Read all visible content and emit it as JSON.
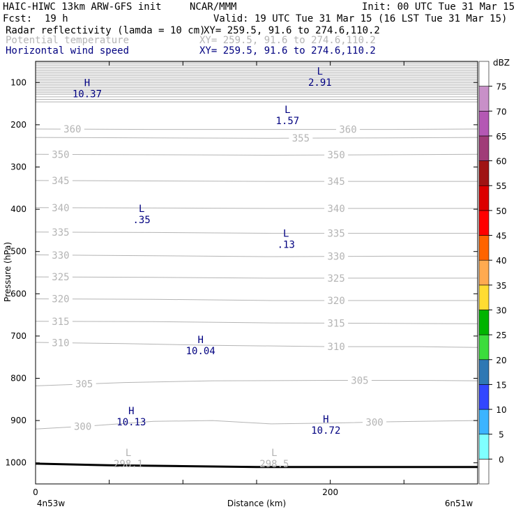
{
  "header": {
    "title_left": "HAIC-HIWC 13km ARW-GFS init",
    "title_org": "NCAR/MMM",
    "init": "Init: 00 UTC Tue 31 Mar 15",
    "fcst_label": "Fcst:",
    "fcst_value": "19 h",
    "valid": "Valid: 19 UTC Tue 31 Mar 15 (16 LST Tue 31 Mar 15)",
    "fields": [
      {
        "name": "Radar reflectivity (lamda = 10 cm)",
        "xy": "XY= 259.5, 91.6 to 274.6,110.2",
        "color": "#000000"
      },
      {
        "name": "Potential temperature",
        "xy": "XY= 259.5, 91.6 to 274.6,110.2",
        "color": "#b4b4b4"
      },
      {
        "name": "Horizontal wind speed",
        "xy": "XY= 259.5, 91.6 to 274.6,110.2",
        "color": "#000080"
      }
    ]
  },
  "chart_data": {
    "type": "cross-section",
    "xlabel": "Distance (km)",
    "ylabel": "Pressure (hPa)",
    "xlim": [
      0,
      300
    ],
    "ylim": [
      1050,
      50
    ],
    "x_ticks": [
      0,
      200
    ],
    "x_minor_ticks": [
      0,
      50,
      100,
      150,
      200,
      250,
      300
    ],
    "y_ticks": [
      100,
      200,
      300,
      400,
      500,
      600,
      700,
      800,
      900,
      1000
    ],
    "x_end_labels": {
      "left": "4n53w",
      "right": "6n51w"
    },
    "terrain_hpa": [
      [
        0,
        1002
      ],
      [
        50,
        1006
      ],
      [
        100,
        1008
      ],
      [
        150,
        1010
      ],
      [
        200,
        1010
      ],
      [
        250,
        1010
      ],
      [
        300,
        1010
      ]
    ],
    "theta_contours": [
      {
        "level": 300,
        "points": [
          [
            0,
            920
          ],
          [
            40,
            912
          ],
          [
            80,
            902
          ],
          [
            120,
            900
          ],
          [
            160,
            908
          ],
          [
            200,
            906
          ],
          [
            240,
            903
          ],
          [
            300,
            900
          ]
        ],
        "labels": [
          {
            "text": "300",
            "x": 32
          },
          {
            "text": "300",
            "x": 230
          }
        ]
      },
      {
        "level": 305,
        "points": [
          [
            0,
            818
          ],
          [
            60,
            810
          ],
          [
            120,
            806
          ],
          [
            200,
            805
          ],
          [
            260,
            805
          ],
          [
            300,
            806
          ]
        ],
        "labels": [
          {
            "text": "305",
            "x": 33
          },
          {
            "text": "305",
            "x": 220
          }
        ]
      },
      {
        "level": 310,
        "points": [
          [
            0,
            715
          ],
          [
            60,
            718
          ],
          [
            120,
            722
          ],
          [
            200,
            725
          ],
          [
            260,
            725
          ],
          [
            300,
            727
          ]
        ],
        "labels": [
          {
            "text": "310",
            "x": 17
          },
          {
            "text": "310",
            "x": 204
          }
        ]
      },
      {
        "level": 315,
        "points": [
          [
            0,
            665
          ],
          [
            80,
            666
          ],
          [
            160,
            669
          ],
          [
            240,
            670
          ],
          [
            300,
            671
          ]
        ],
        "labels": [
          {
            "text": "315",
            "x": 17
          },
          {
            "text": "315",
            "x": 204
          }
        ]
      },
      {
        "level": 320,
        "points": [
          [
            0,
            612
          ],
          [
            80,
            613
          ],
          [
            160,
            616
          ],
          [
            240,
            616
          ],
          [
            300,
            616
          ]
        ],
        "labels": [
          {
            "text": "320",
            "x": 17
          },
          {
            "text": "320",
            "x": 204
          }
        ]
      },
      {
        "level": 325,
        "points": [
          [
            0,
            560
          ],
          [
            80,
            561
          ],
          [
            160,
            563
          ],
          [
            240,
            563
          ],
          [
            300,
            563
          ]
        ],
        "labels": [
          {
            "text": "325",
            "x": 17
          },
          {
            "text": "325",
            "x": 204
          }
        ]
      },
      {
        "level": 330,
        "points": [
          [
            0,
            508
          ],
          [
            80,
            510
          ],
          [
            160,
            512
          ],
          [
            240,
            511
          ],
          [
            300,
            511
          ]
        ],
        "labels": [
          {
            "text": "330",
            "x": 17
          },
          {
            "text": "330",
            "x": 204
          }
        ]
      },
      {
        "level": 335,
        "points": [
          [
            0,
            454
          ],
          [
            80,
            455
          ],
          [
            160,
            457
          ],
          [
            240,
            457
          ],
          [
            300,
            457
          ]
        ],
        "labels": [
          {
            "text": "335",
            "x": 17
          },
          {
            "text": "335",
            "x": 204
          }
        ]
      },
      {
        "level": 340,
        "points": [
          [
            0,
            396
          ],
          [
            80,
            397
          ],
          [
            160,
            398
          ],
          [
            240,
            398
          ],
          [
            300,
            398
          ]
        ],
        "labels": [
          {
            "text": "340",
            "x": 17
          },
          {
            "text": "340",
            "x": 204
          }
        ]
      },
      {
        "level": 345,
        "points": [
          [
            0,
            332
          ],
          [
            80,
            333
          ],
          [
            160,
            334
          ],
          [
            240,
            334
          ],
          [
            300,
            334
          ]
        ],
        "labels": [
          {
            "text": "345",
            "x": 17
          },
          {
            "text": "345",
            "x": 204
          }
        ]
      },
      {
        "level": 350,
        "points": [
          [
            0,
            270
          ],
          [
            80,
            271
          ],
          [
            160,
            272
          ],
          [
            240,
            271
          ],
          [
            300,
            270
          ]
        ],
        "labels": [
          {
            "text": "350",
            "x": 17
          },
          {
            "text": "350",
            "x": 204
          }
        ]
      },
      {
        "level": 355,
        "points": [
          [
            0,
            230
          ],
          [
            80,
            231
          ],
          [
            160,
            232
          ],
          [
            240,
            231
          ],
          [
            300,
            230
          ]
        ],
        "labels": [
          {
            "text": "355",
            "x": 180
          }
        ]
      },
      {
        "level": 360,
        "points": [
          [
            0,
            210
          ],
          [
            80,
            211
          ],
          [
            160,
            211
          ],
          [
            240,
            211
          ],
          [
            300,
            210
          ]
        ],
        "labels": [
          {
            "text": "360",
            "x": 25
          },
          {
            "text": "360",
            "x": 212
          }
        ]
      }
    ],
    "upper_contours_hpa": [
      52,
      56,
      60,
      64,
      68,
      72,
      76,
      80,
      84,
      88,
      92,
      96,
      100,
      104,
      108,
      112,
      116,
      120,
      124,
      128,
      134,
      140,
      146
    ],
    "theta_extrema": [
      {
        "type": "L",
        "value": "298.1",
        "x": 63,
        "p": 1002
      },
      {
        "type": "L",
        "value": "298.5",
        "x": 162,
        "p": 1002
      }
    ],
    "wind_extrema": [
      {
        "type": "H",
        "value": "10.37",
        "x": 35,
        "p": 112
      },
      {
        "type": "L",
        "value": "2.91",
        "x": 193,
        "p": 85
      },
      {
        "type": "L",
        "value": "1.57",
        "x": 171,
        "p": 175
      },
      {
        "type": "L",
        "value": ".35",
        "x": 72,
        "p": 410
      },
      {
        "type": "L",
        "value": ".13",
        "x": 170,
        "p": 468
      },
      {
        "type": "H",
        "value": "10.04",
        "x": 112,
        "p": 720
      },
      {
        "type": "H",
        "value": "10.13",
        "x": 65,
        "p": 888
      },
      {
        "type": "H",
        "value": "10.72",
        "x": 197,
        "p": 908
      }
    ],
    "colorbar": {
      "unit": "dBZ",
      "levels": [
        0,
        5,
        10,
        15,
        20,
        25,
        30,
        35,
        40,
        45,
        50,
        55,
        60,
        65,
        70,
        75
      ],
      "colors": [
        "#ffffff",
        "#80ffff",
        "#3cb4ff",
        "#3246ff",
        "#2e78b4",
        "#3cdc3c",
        "#00b400",
        "#ffdc32",
        "#ffaa50",
        "#ff6400",
        "#ff0000",
        "#dc0000",
        "#a01414",
        "#a03c78",
        "#b458b4",
        "#c890c8",
        "#ffffff"
      ]
    }
  }
}
